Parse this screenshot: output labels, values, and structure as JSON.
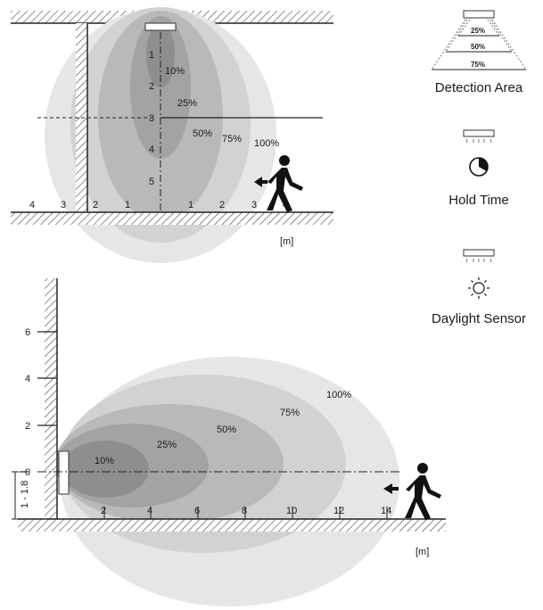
{
  "top_diagram": {
    "height_ticks": [
      "1",
      "2",
      "3",
      "4",
      "5"
    ],
    "distance_ticks_left": [
      "4",
      "3",
      "2",
      "1"
    ],
    "distance_ticks_right": [
      "1",
      "2",
      "3",
      "4"
    ],
    "zones": [
      "10%",
      "25%",
      "50%",
      "75%",
      "100%"
    ],
    "unit": "[m]"
  },
  "bottom_diagram": {
    "height_ticks": [
      "6",
      "4",
      "2",
      "0"
    ],
    "distance_ticks": [
      "2",
      "4",
      "6",
      "8",
      "10",
      "12",
      "14"
    ],
    "zones": [
      "10%",
      "25%",
      "50%",
      "75%",
      "100%"
    ],
    "mount_height": "1 - 1.8",
    "unit": "[m]"
  },
  "legend": {
    "detection_area": {
      "title": "Detection Area",
      "rings": [
        "25%",
        "50%",
        "75%"
      ]
    },
    "hold_time": {
      "title": "Hold Time",
      "icon": "clock-icon"
    },
    "daylight_sensor": {
      "title": "Daylight Sensor",
      "icon": "sun-icon"
    }
  },
  "colors": {
    "ring_100": "#e6e6e6",
    "ring_75": "#d2d2d2",
    "ring_50": "#b9b9b9",
    "ring_25": "#a3a3a3",
    "ring_10": "#8e8e8e"
  }
}
